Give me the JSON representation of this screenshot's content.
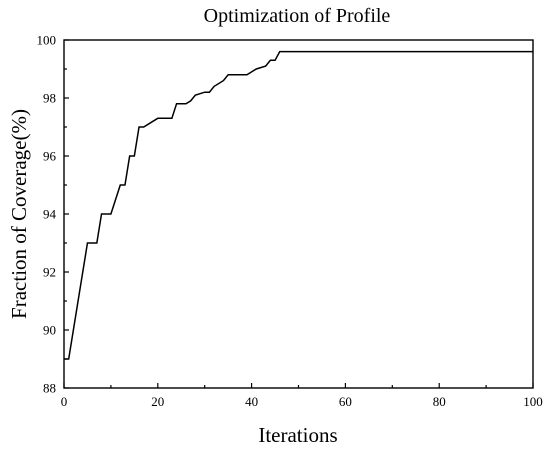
{
  "chart_data": {
    "type": "line",
    "title": "Optimization of Profile",
    "xlabel": "Iterations",
    "ylabel": "Fraction of Coverage(%)",
    "xlim": [
      0,
      100
    ],
    "ylim": [
      88,
      100
    ],
    "x_ticks": [
      0,
      20,
      40,
      60,
      80,
      100
    ],
    "y_ticks": [
      88,
      90,
      92,
      94,
      96,
      98,
      100
    ],
    "grid": false,
    "series": [
      {
        "color": "#000000",
        "points": [
          [
            0,
            89.0
          ],
          [
            1,
            89.0
          ],
          [
            3,
            91.0
          ],
          [
            5,
            93.0
          ],
          [
            7,
            93.0
          ],
          [
            8,
            94.0
          ],
          [
            10,
            94.0
          ],
          [
            12,
            95.0
          ],
          [
            13,
            95.0
          ],
          [
            14,
            96.0
          ],
          [
            15,
            96.0
          ],
          [
            16,
            97.0
          ],
          [
            17,
            97.0
          ],
          [
            19,
            97.2
          ],
          [
            20,
            97.3
          ],
          [
            22,
            97.3
          ],
          [
            23,
            97.3
          ],
          [
            24,
            97.8
          ],
          [
            26,
            97.8
          ],
          [
            27,
            97.9
          ],
          [
            28,
            98.1
          ],
          [
            30,
            98.2
          ],
          [
            31,
            98.2
          ],
          [
            32,
            98.4
          ],
          [
            34,
            98.6
          ],
          [
            35,
            98.8
          ],
          [
            37,
            98.8
          ],
          [
            39,
            98.8
          ],
          [
            40,
            98.9
          ],
          [
            41,
            99.0
          ],
          [
            43,
            99.1
          ],
          [
            44,
            99.3
          ],
          [
            45,
            99.3
          ],
          [
            46,
            99.6
          ],
          [
            100,
            99.6
          ]
        ]
      }
    ]
  }
}
